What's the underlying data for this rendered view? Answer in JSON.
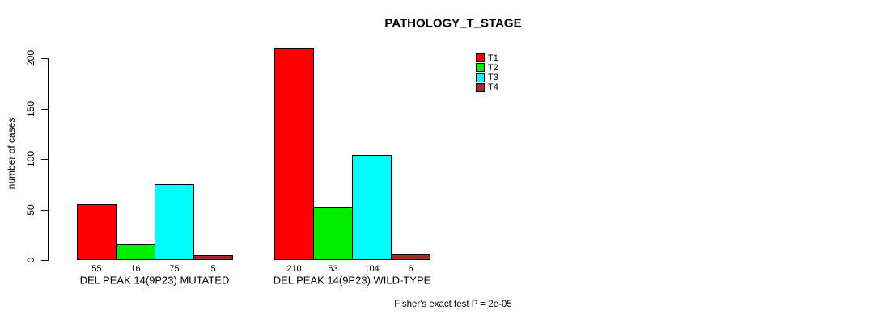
{
  "title": "PATHOLOGY_T_STAGE",
  "footer": "Fisher's exact test P = 2e-05",
  "y_axis": {
    "label": "number of cases",
    "ticks": [
      0,
      50,
      100,
      150,
      200
    ]
  },
  "legend": {
    "position": "top-right",
    "items": [
      {
        "label": "T1",
        "color": "#ff0000"
      },
      {
        "label": "T2",
        "color": "#00ee00"
      },
      {
        "label": "T3",
        "color": "#00ffff"
      },
      {
        "label": "T4",
        "color": "#a52a2a"
      }
    ]
  },
  "chart_data": {
    "type": "bar",
    "title": "PATHOLOGY_T_STAGE",
    "categories": [
      "DEL PEAK 14(9P23) MUTATED",
      "DEL PEAK 14(9P23) WILD-TYPE"
    ],
    "series": [
      {
        "name": "T1",
        "color": "#ff0000",
        "values": [
          55,
          210
        ]
      },
      {
        "name": "T2",
        "color": "#00ee00",
        "values": [
          16,
          53
        ]
      },
      {
        "name": "T3",
        "color": "#00ffff",
        "values": [
          75,
          104
        ]
      },
      {
        "name": "T4",
        "color": "#a52a2a",
        "values": [
          5,
          6
        ]
      }
    ],
    "xlabel": "",
    "ylabel": "number of cases",
    "ylim": [
      0,
      200
    ],
    "grid": false,
    "legend_position": "top-right",
    "bar_value_labels": true,
    "annotation": "Fisher's exact test P = 2e-05"
  }
}
